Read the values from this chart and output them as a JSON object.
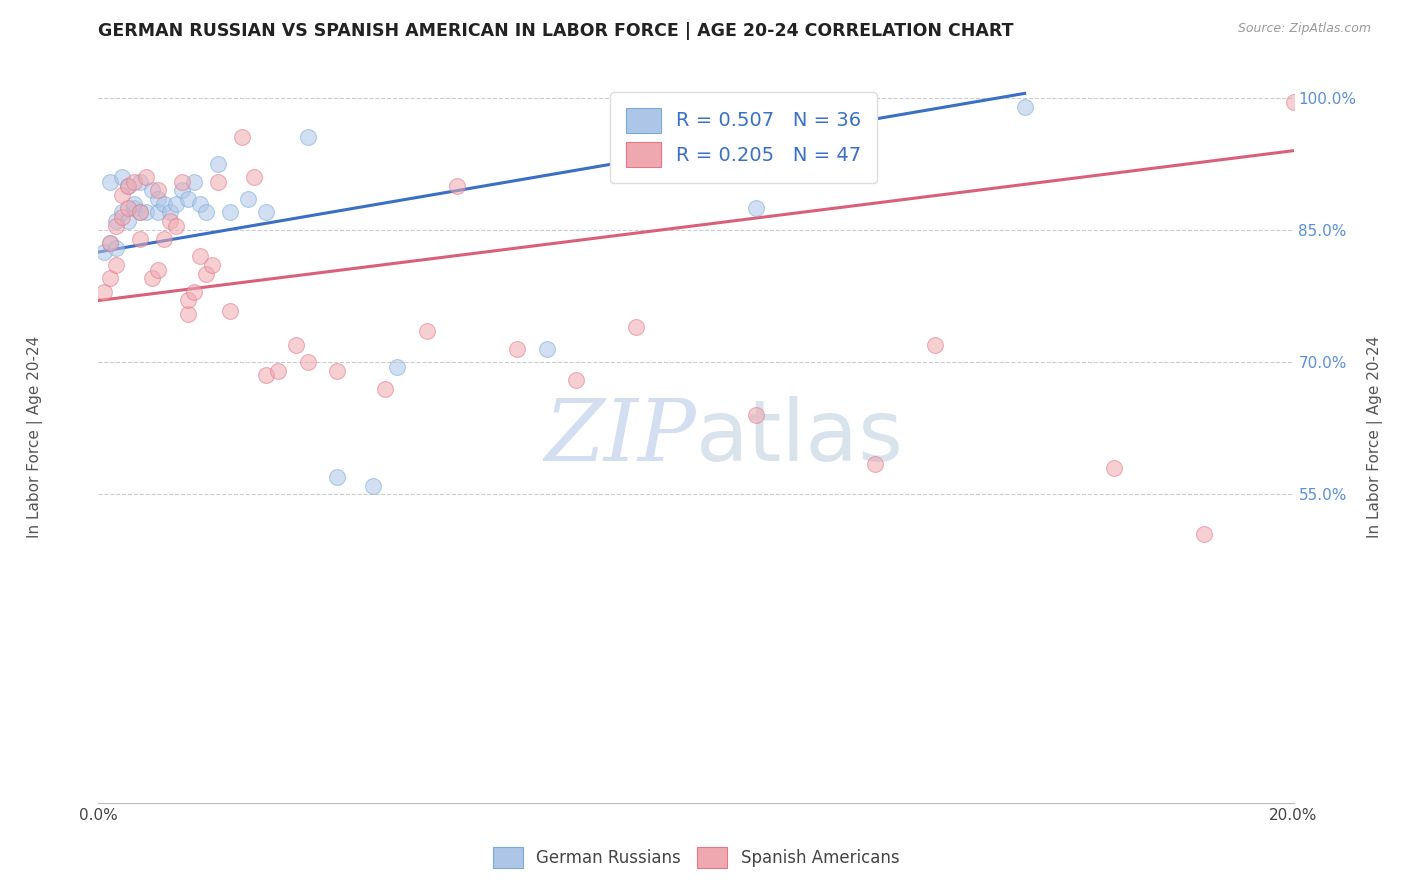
{
  "title": "GERMAN RUSSIAN VS SPANISH AMERICAN IN LABOR FORCE | AGE 20-24 CORRELATION CHART",
  "source": "Source: ZipAtlas.com",
  "ylabel": "In Labor Force | Age 20-24",
  "xmin": 0.0,
  "xmax": 0.2,
  "ymin": 0.2,
  "ymax": 1.03,
  "yticks": [
    0.55,
    0.7,
    0.85,
    1.0
  ],
  "ytick_labels": [
    "55.0%",
    "70.0%",
    "85.0%",
    "100.0%"
  ],
  "xtick_positions": [
    0.0,
    0.04,
    0.08,
    0.12,
    0.16,
    0.2
  ],
  "xtick_labels": [
    "0.0%",
    "",
    "",
    "",
    "",
    "20.0%"
  ],
  "legend_entries": [
    {
      "label": "German Russians",
      "color": "#adc6e8",
      "edge": "#7aaad4",
      "R": 0.507,
      "N": 36
    },
    {
      "label": "Spanish Americans",
      "color": "#f0a8b0",
      "edge": "#e07888",
      "R": 0.205,
      "N": 47
    }
  ],
  "blue_scatter_x": [
    0.001,
    0.002,
    0.002,
    0.003,
    0.003,
    0.004,
    0.004,
    0.005,
    0.005,
    0.006,
    0.006,
    0.007,
    0.007,
    0.008,
    0.009,
    0.01,
    0.01,
    0.011,
    0.012,
    0.013,
    0.014,
    0.015,
    0.016,
    0.017,
    0.018,
    0.02,
    0.022,
    0.025,
    0.028,
    0.035,
    0.04,
    0.046,
    0.05,
    0.075,
    0.11,
    0.155
  ],
  "blue_scatter_y": [
    0.825,
    0.835,
    0.905,
    0.83,
    0.86,
    0.87,
    0.91,
    0.86,
    0.9,
    0.875,
    0.88,
    0.87,
    0.905,
    0.87,
    0.895,
    0.885,
    0.87,
    0.88,
    0.87,
    0.88,
    0.895,
    0.885,
    0.905,
    0.88,
    0.87,
    0.925,
    0.87,
    0.885,
    0.87,
    0.955,
    0.57,
    0.56,
    0.695,
    0.715,
    0.875,
    0.99
  ],
  "pink_scatter_x": [
    0.001,
    0.002,
    0.002,
    0.003,
    0.003,
    0.004,
    0.004,
    0.005,
    0.005,
    0.006,
    0.007,
    0.007,
    0.008,
    0.009,
    0.01,
    0.01,
    0.011,
    0.012,
    0.013,
    0.014,
    0.015,
    0.015,
    0.016,
    0.017,
    0.018,
    0.019,
    0.02,
    0.022,
    0.024,
    0.026,
    0.028,
    0.03,
    0.033,
    0.035,
    0.04,
    0.048,
    0.055,
    0.06,
    0.07,
    0.08,
    0.09,
    0.11,
    0.13,
    0.14,
    0.17,
    0.185,
    0.2
  ],
  "pink_scatter_y": [
    0.78,
    0.795,
    0.835,
    0.81,
    0.855,
    0.865,
    0.89,
    0.875,
    0.9,
    0.905,
    0.84,
    0.87,
    0.91,
    0.795,
    0.805,
    0.895,
    0.84,
    0.86,
    0.855,
    0.905,
    0.755,
    0.77,
    0.78,
    0.82,
    0.8,
    0.81,
    0.905,
    0.758,
    0.955,
    0.91,
    0.685,
    0.69,
    0.72,
    0.7,
    0.69,
    0.67,
    0.735,
    0.9,
    0.715,
    0.68,
    0.74,
    0.64,
    0.585,
    0.72,
    0.58,
    0.505,
    0.995
  ],
  "blue_line_x": [
    0.0,
    0.155
  ],
  "blue_line_y": [
    0.825,
    1.005
  ],
  "pink_line_x": [
    0.0,
    0.2
  ],
  "pink_line_y": [
    0.77,
    0.94
  ],
  "watermark_zip": "ZIP",
  "watermark_atlas": "atlas",
  "background_color": "#ffffff",
  "scatter_alpha": 0.55,
  "scatter_size": 130,
  "grid_color": "#cccccc",
  "grid_linestyle": "--",
  "grid_linewidth": 0.8
}
